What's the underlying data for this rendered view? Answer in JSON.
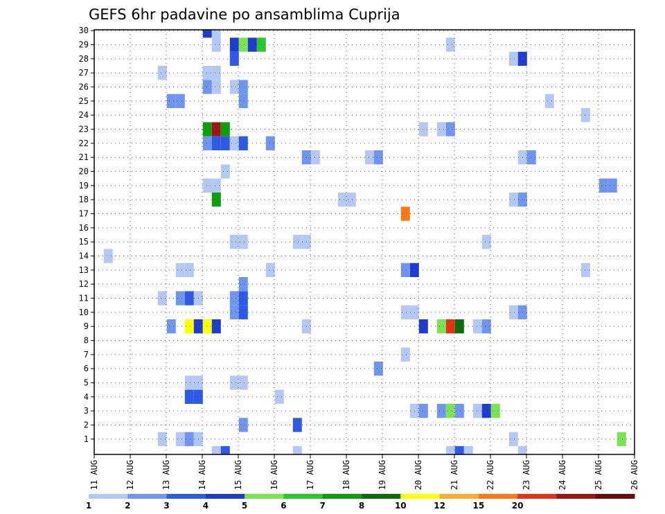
{
  "chart_data": {
    "type": "heatmap",
    "title": "GEFS 6hr padavine po ansamblima Cuprija",
    "xlabel": "",
    "ylabel": "",
    "x_tick_labels": [
      "11 AUG",
      "12 AUG",
      "13 AUG",
      "14 AUG",
      "15 AUG",
      "16 AUG",
      "17 AUG",
      "18 AUG",
      "19 AUG",
      "20 AUG",
      "21 AUG",
      "22 AUG",
      "23 AUG",
      "24 AUG",
      "25 AUG",
      "26 AUG"
    ],
    "x_range_days": [
      11,
      26
    ],
    "y_range": [
      0,
      30
    ],
    "y_tick_labels": [
      "1",
      "2",
      "3",
      "4",
      "5",
      "6",
      "7",
      "8",
      "9",
      "10",
      "11",
      "12",
      "13",
      "14",
      "15",
      "16",
      "17",
      "18",
      "19",
      "20",
      "21",
      "22",
      "23",
      "24",
      "25",
      "26",
      "27",
      "28",
      "29",
      "30"
    ],
    "grid": true,
    "colorbar": {
      "tick_labels": [
        "1",
        "2",
        "3",
        "4",
        "5",
        "6",
        "7",
        "8",
        "10",
        "12",
        "15",
        "20"
      ],
      "colors": [
        "#b4c8f5",
        "#6e96f0",
        "#2d5ae6",
        "#1e3cd2",
        "#78e650",
        "#28c828",
        "#0aa00a",
        "#0a6e0a",
        "#ffff00",
        "#ffaa32",
        "#ff7814",
        "#e63214",
        "#a01414",
        "#6e0a0a"
      ]
    },
    "cells": [
      {
        "day": 14.14,
        "member": 30,
        "level": 4
      },
      {
        "day": 14.39,
        "member": 30,
        "level": 1
      },
      {
        "day": 14.39,
        "member": 29,
        "level": 1
      },
      {
        "day": 14.89,
        "member": 29,
        "level": 4
      },
      {
        "day": 15.14,
        "member": 29,
        "level": 5
      },
      {
        "day": 15.39,
        "member": 29,
        "level": 4
      },
      {
        "day": 15.64,
        "member": 29,
        "level": 6
      },
      {
        "day": 20.89,
        "member": 29,
        "level": 1
      },
      {
        "day": 14.89,
        "member": 28,
        "level": 3
      },
      {
        "day": 22.64,
        "member": 28,
        "level": 1
      },
      {
        "day": 22.89,
        "member": 28,
        "level": 4
      },
      {
        "day": 12.89,
        "member": 27,
        "level": 1
      },
      {
        "day": 14.14,
        "member": 27,
        "level": 1
      },
      {
        "day": 14.39,
        "member": 27,
        "level": 1
      },
      {
        "day": 14.14,
        "member": 26,
        "level": 2
      },
      {
        "day": 14.39,
        "member": 26,
        "level": 1
      },
      {
        "day": 14.89,
        "member": 26,
        "level": 1
      },
      {
        "day": 15.14,
        "member": 26,
        "level": 2
      },
      {
        "day": 13.14,
        "member": 25,
        "level": 2
      },
      {
        "day": 13.39,
        "member": 25,
        "level": 2
      },
      {
        "day": 15.14,
        "member": 25,
        "level": 2
      },
      {
        "day": 23.64,
        "member": 25,
        "level": 1
      },
      {
        "day": 24.64,
        "member": 24,
        "level": 1
      },
      {
        "day": 14.14,
        "member": 23,
        "level": 7
      },
      {
        "day": 14.39,
        "member": 23,
        "level": 13
      },
      {
        "day": 14.64,
        "member": 23,
        "level": 7
      },
      {
        "day": 20.14,
        "member": 23,
        "level": 1
      },
      {
        "day": 20.64,
        "member": 23,
        "level": 1
      },
      {
        "day": 20.89,
        "member": 23,
        "level": 2
      },
      {
        "day": 14.14,
        "member": 22,
        "level": 2
      },
      {
        "day": 14.39,
        "member": 22,
        "level": 3
      },
      {
        "day": 14.64,
        "member": 22,
        "level": 3
      },
      {
        "day": 14.89,
        "member": 22,
        "level": 1
      },
      {
        "day": 15.14,
        "member": 22,
        "level": 3
      },
      {
        "day": 15.89,
        "member": 22,
        "level": 2
      },
      {
        "day": 16.89,
        "member": 21,
        "level": 2
      },
      {
        "day": 17.14,
        "member": 21,
        "level": 1
      },
      {
        "day": 18.64,
        "member": 21,
        "level": 1
      },
      {
        "day": 18.89,
        "member": 21,
        "level": 2
      },
      {
        "day": 22.89,
        "member": 21,
        "level": 1
      },
      {
        "day": 23.14,
        "member": 21,
        "level": 2
      },
      {
        "day": 14.64,
        "member": 20,
        "level": 1
      },
      {
        "day": 14.14,
        "member": 19,
        "level": 1
      },
      {
        "day": 14.39,
        "member": 19,
        "level": 1
      },
      {
        "day": 25.14,
        "member": 19,
        "level": 2
      },
      {
        "day": 25.39,
        "member": 19,
        "level": 2
      },
      {
        "day": 14.39,
        "member": 18,
        "level": 7
      },
      {
        "day": 17.89,
        "member": 18,
        "level": 1
      },
      {
        "day": 18.14,
        "member": 18,
        "level": 1
      },
      {
        "day": 22.64,
        "member": 18,
        "level": 1
      },
      {
        "day": 22.89,
        "member": 18,
        "level": 2
      },
      {
        "day": 19.64,
        "member": 17,
        "level": 11
      },
      {
        "day": 14.89,
        "member": 15,
        "level": 1
      },
      {
        "day": 15.14,
        "member": 15,
        "level": 1
      },
      {
        "day": 16.64,
        "member": 15,
        "level": 1
      },
      {
        "day": 16.89,
        "member": 15,
        "level": 1
      },
      {
        "day": 21.89,
        "member": 15,
        "level": 1
      },
      {
        "day": 11.39,
        "member": 14,
        "level": 1
      },
      {
        "day": 13.39,
        "member": 13,
        "level": 1
      },
      {
        "day": 13.64,
        "member": 13,
        "level": 1
      },
      {
        "day": 15.89,
        "member": 13,
        "level": 1
      },
      {
        "day": 19.64,
        "member": 13,
        "level": 2
      },
      {
        "day": 19.89,
        "member": 13,
        "level": 4
      },
      {
        "day": 24.64,
        "member": 13,
        "level": 1
      },
      {
        "day": 15.14,
        "member": 12,
        "level": 2
      },
      {
        "day": 12.89,
        "member": 11,
        "level": 1
      },
      {
        "day": 13.39,
        "member": 11,
        "level": 2
      },
      {
        "day": 13.64,
        "member": 11,
        "level": 3
      },
      {
        "day": 13.89,
        "member": 11,
        "level": 1
      },
      {
        "day": 14.89,
        "member": 11,
        "level": 2
      },
      {
        "day": 15.14,
        "member": 11,
        "level": 3
      },
      {
        "day": 14.89,
        "member": 10,
        "level": 2
      },
      {
        "day": 15.14,
        "member": 10,
        "level": 3
      },
      {
        "day": 19.64,
        "member": 10,
        "level": 1
      },
      {
        "day": 19.89,
        "member": 10,
        "level": 1
      },
      {
        "day": 22.64,
        "member": 10,
        "level": 1
      },
      {
        "day": 22.89,
        "member": 10,
        "level": 2
      },
      {
        "day": 13.14,
        "member": 9,
        "level": 2
      },
      {
        "day": 13.64,
        "member": 9,
        "level": 9
      },
      {
        "day": 13.89,
        "member": 9,
        "level": 4
      },
      {
        "day": 14.14,
        "member": 9,
        "level": 9
      },
      {
        "day": 14.39,
        "member": 9,
        "level": 4
      },
      {
        "day": 16.89,
        "member": 9,
        "level": 1
      },
      {
        "day": 20.14,
        "member": 9,
        "level": 4
      },
      {
        "day": 20.64,
        "member": 9,
        "level": 5
      },
      {
        "day": 20.89,
        "member": 9,
        "level": 12
      },
      {
        "day": 21.14,
        "member": 9,
        "level": 8
      },
      {
        "day": 21.64,
        "member": 9,
        "level": 1
      },
      {
        "day": 21.89,
        "member": 9,
        "level": 2
      },
      {
        "day": 19.64,
        "member": 7,
        "level": 1
      },
      {
        "day": 18.89,
        "member": 6,
        "level": 2
      },
      {
        "day": 13.64,
        "member": 5,
        "level": 1
      },
      {
        "day": 13.89,
        "member": 5,
        "level": 1
      },
      {
        "day": 14.89,
        "member": 5,
        "level": 1
      },
      {
        "day": 15.14,
        "member": 5,
        "level": 1
      },
      {
        "day": 13.64,
        "member": 4,
        "level": 3
      },
      {
        "day": 13.89,
        "member": 4,
        "level": 3
      },
      {
        "day": 16.14,
        "member": 4,
        "level": 1
      },
      {
        "day": 19.89,
        "member": 3,
        "level": 1
      },
      {
        "day": 20.14,
        "member": 3,
        "level": 2
      },
      {
        "day": 20.64,
        "member": 3,
        "level": 2
      },
      {
        "day": 20.89,
        "member": 3,
        "level": 5
      },
      {
        "day": 21.14,
        "member": 3,
        "level": 2
      },
      {
        "day": 21.64,
        "member": 3,
        "level": 1
      },
      {
        "day": 21.89,
        "member": 3,
        "level": 4
      },
      {
        "day": 22.14,
        "member": 3,
        "level": 5
      },
      {
        "day": 15.14,
        "member": 2,
        "level": 2
      },
      {
        "day": 16.64,
        "member": 2,
        "level": 3
      },
      {
        "day": 12.89,
        "member": 1,
        "level": 1
      },
      {
        "day": 13.39,
        "member": 1,
        "level": 1
      },
      {
        "day": 13.64,
        "member": 1,
        "level": 2
      },
      {
        "day": 13.89,
        "member": 1,
        "level": 1
      },
      {
        "day": 22.64,
        "member": 1,
        "level": 1
      },
      {
        "day": 25.64,
        "member": 1,
        "level": 5
      },
      {
        "day": 14.39,
        "member": 0,
        "level": 1
      },
      {
        "day": 14.64,
        "member": 0,
        "level": 3
      },
      {
        "day": 16.64,
        "member": 0,
        "level": 1
      },
      {
        "day": 20.89,
        "member": 0,
        "level": 1
      },
      {
        "day": 21.14,
        "member": 0,
        "level": 3
      },
      {
        "day": 21.39,
        "member": 0,
        "level": 1
      },
      {
        "day": 22.89,
        "member": 0,
        "level": 1
      }
    ]
  }
}
